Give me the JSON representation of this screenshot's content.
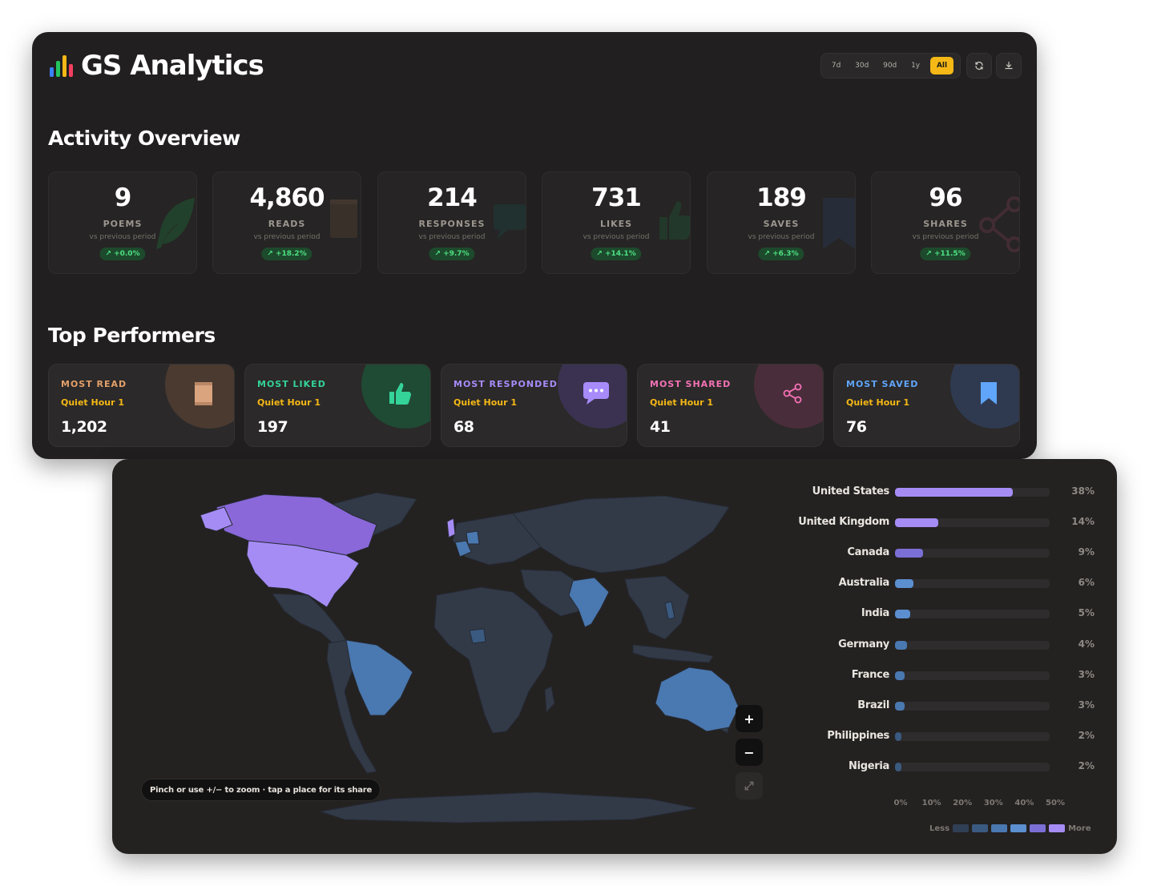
{
  "app": {
    "title": "GS Analytics",
    "brand_bar_colors": [
      "#3b82f6",
      "#22c55e",
      "#f5b816",
      "#f43f5e"
    ]
  },
  "toolbar": {
    "ranges": [
      "7d",
      "30d",
      "90d",
      "1y",
      "All"
    ],
    "active_range": "All",
    "refresh_icon": "refresh-icon",
    "download_icon": "download-icon"
  },
  "overview": {
    "title": "Activity Overview",
    "cards": [
      {
        "value": "9",
        "label": "POEMS",
        "sub": "vs previous period",
        "delta": "↗ +0.0%",
        "icon": "feather-icon"
      },
      {
        "value": "4,860",
        "label": "READS",
        "sub": "vs previous period",
        "delta": "↗ +18.2%",
        "icon": "book-icon"
      },
      {
        "value": "214",
        "label": "RESPONSES",
        "sub": "vs previous period",
        "delta": "↗ +9.7%",
        "icon": "chat-icon"
      },
      {
        "value": "731",
        "label": "LIKES",
        "sub": "vs previous period",
        "delta": "↗ +14.1%",
        "icon": "thumb-up-icon"
      },
      {
        "value": "189",
        "label": "SAVES",
        "sub": "vs previous period",
        "delta": "↗ +6.3%",
        "icon": "bookmark-icon"
      },
      {
        "value": "96",
        "label": "SHARES",
        "sub": "vs previous period",
        "delta": "↗ +11.5%",
        "icon": "share-icon"
      }
    ]
  },
  "performers": {
    "title": "Top Performers",
    "cards": [
      {
        "label": "MOST READ",
        "title": "Quiet Hour 1",
        "value": "1,202",
        "color": "#e3a06a",
        "icon": "book-icon"
      },
      {
        "label": "MOST LIKED",
        "title": "Quiet Hour 1",
        "value": "197",
        "color": "#34d399",
        "icon": "thumb-up-icon"
      },
      {
        "label": "MOST RESPONDED",
        "title": "Quiet Hour 1",
        "value": "68",
        "color": "#a78bfa",
        "icon": "chat-icon"
      },
      {
        "label": "MOST SHARED",
        "title": "Quiet Hour 1",
        "value": "41",
        "color": "#f472b6",
        "icon": "share-icon"
      },
      {
        "label": "MOST SAVED",
        "title": "Quiet Hour 1",
        "value": "76",
        "color": "#60a5fa",
        "icon": "bookmark-icon"
      }
    ]
  },
  "map": {
    "hint": "Pinch or use +/− to zoom · tap a place for its share",
    "zoom_in_label": "+",
    "zoom_out_label": "−",
    "expand_icon": "expand-icon"
  },
  "chart_data": {
    "type": "bar",
    "orientation": "horizontal",
    "categories": [
      "United States",
      "United Kingdom",
      "Canada",
      "Australia",
      "India",
      "Germany",
      "France",
      "Brazil",
      "Philippines",
      "Nigeria"
    ],
    "values": [
      38,
      14,
      9,
      6,
      5,
      4,
      3,
      3,
      2,
      2
    ],
    "value_labels": [
      "38%",
      "14%",
      "9%",
      "6%",
      "5%",
      "4%",
      "3%",
      "3%",
      "2%",
      "2%"
    ],
    "xlim": [
      0,
      50
    ],
    "x_ticks": [
      "0%",
      "10%",
      "20%",
      "30%",
      "40%",
      "50%"
    ],
    "legend": {
      "low": "Less",
      "high": "More",
      "colors": [
        "#2f3f55",
        "#3a5a80",
        "#4a78b0",
        "#5b8fd0",
        "#7b6fd6",
        "#a58cf5"
      ]
    }
  }
}
